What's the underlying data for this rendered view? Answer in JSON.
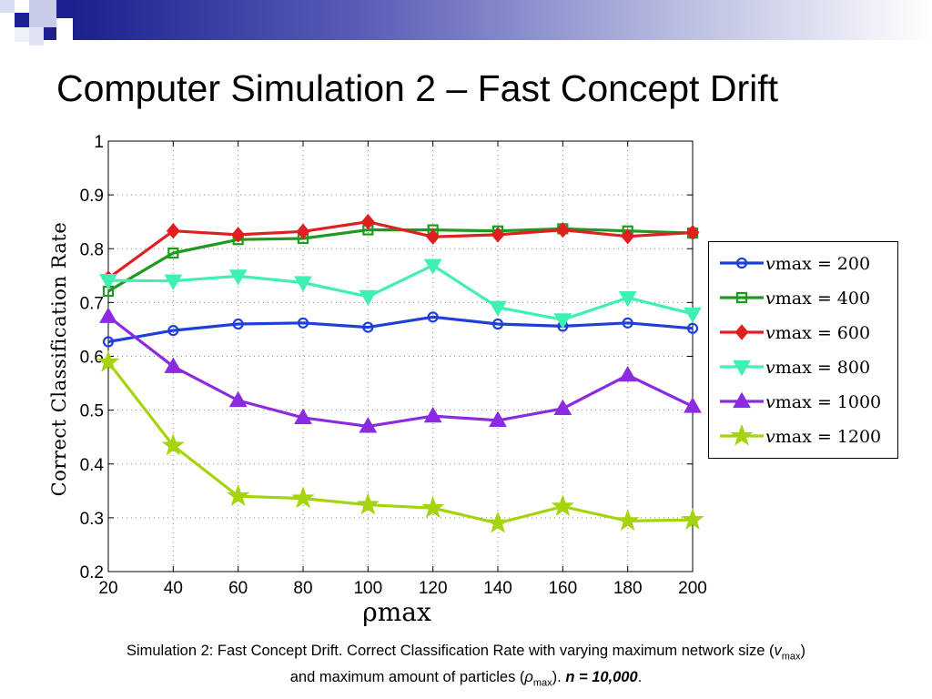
{
  "slide": {
    "title": "Computer Simulation 2 – Fast Concept Drift",
    "caption_line1_a": "Simulation 2: Fast Concept Drift. Correct Classification Rate with varying maximum network size (",
    "caption_line1_v": "v",
    "caption_line1_sub": "max",
    "caption_line1_b": ")",
    "caption_line2_a": "and maximum amount of particles (",
    "caption_line2_rho": "ρ",
    "caption_line2_sub": "max",
    "caption_line2_b": "). ",
    "caption_line2_bold": "n = 10,000",
    "caption_line2_end": ".",
    "colors": {
      "banner": "#1c2090",
      "deco_dark": "#1c2090",
      "deco_light": "#c8cce8"
    }
  },
  "chart_data": {
    "type": "line",
    "xlabel": "ρmax",
    "ylabel": "Correct Classification Rate",
    "x": [
      20,
      40,
      60,
      80,
      100,
      120,
      140,
      160,
      180,
      200
    ],
    "xticks": [
      "20",
      "40",
      "60",
      "80",
      "100",
      "120",
      "140",
      "160",
      "180",
      "200"
    ],
    "yticks": [
      "0.2",
      "0.3",
      "0.4",
      "0.5",
      "0.6",
      "0.7",
      "0.8",
      "0.9",
      "1"
    ],
    "xlim": [
      20,
      200
    ],
    "ylim": [
      0.2,
      1.0
    ],
    "grid": true,
    "legend_position": "right",
    "series": [
      {
        "name": "v_max = 200",
        "legend_var": "v",
        "legend_sub": "max",
        "legend_eq": " = 200",
        "color": "#1f3fd9",
        "marker": "circle",
        "values": [
          0.627,
          0.648,
          0.66,
          0.662,
          0.654,
          0.673,
          0.66,
          0.656,
          0.662,
          0.652
        ]
      },
      {
        "name": "v_max = 400",
        "legend_var": "v",
        "legend_sub": "max",
        "legend_eq": " = 400",
        "color": "#1e9a1e",
        "marker": "square",
        "values": [
          0.721,
          0.792,
          0.817,
          0.819,
          0.835,
          0.835,
          0.833,
          0.837,
          0.833,
          0.829
        ]
      },
      {
        "name": "v_max = 600",
        "legend_var": "v",
        "legend_sub": "max",
        "legend_eq": " = 600",
        "color": "#e02020",
        "marker": "diamond",
        "values": [
          0.745,
          0.833,
          0.826,
          0.832,
          0.85,
          0.822,
          0.826,
          0.835,
          0.823,
          0.83
        ]
      },
      {
        "name": "v_max = 800",
        "legend_var": "v",
        "legend_sub": "max",
        "legend_eq": " = 800",
        "color": "#40f0b0",
        "marker": "triangle-down",
        "values": [
          0.741,
          0.74,
          0.749,
          0.737,
          0.711,
          0.769,
          0.691,
          0.668,
          0.709,
          0.679
        ]
      },
      {
        "name": "v_max = 1000",
        "legend_var": "v",
        "legend_sub": "max",
        "legend_eq": " = 1000",
        "color": "#8a2be2",
        "marker": "triangle-up",
        "values": [
          0.674,
          0.581,
          0.518,
          0.486,
          0.47,
          0.489,
          0.481,
          0.503,
          0.565,
          0.507
        ]
      },
      {
        "name": "v_max = 1200",
        "legend_var": "v",
        "legend_sub": "max",
        "legend_eq": " = 1200",
        "color": "#a6d40c",
        "marker": "star",
        "values": [
          0.589,
          0.434,
          0.34,
          0.336,
          0.324,
          0.318,
          0.29,
          0.321,
          0.294,
          0.296
        ]
      }
    ]
  }
}
